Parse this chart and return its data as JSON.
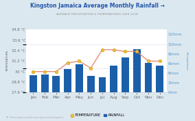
{
  "title": "Kingston Jamaica Average Monthly Rainfall →",
  "subtitle": "AVERAGE PRECIPITATION & TEMPERATURES 1949-2018",
  "months": [
    "Jan",
    "Feb",
    "Mar",
    "Apr",
    "May",
    "Jun",
    "Jul",
    "Aug",
    "Sep",
    "Oct",
    "Nov",
    "Dec"
  ],
  "temperature": [
    30.0,
    30.0,
    30.0,
    31.0,
    31.2,
    30.4,
    32.5,
    32.5,
    32.3,
    32.3,
    31.2,
    31.2
  ],
  "rainfall": [
    36,
    38,
    35,
    48,
    58,
    35,
    32,
    55,
    72,
    90,
    62,
    55
  ],
  "temp_ylim": [
    27.6,
    34.8
  ],
  "rain_ylim": [
    0,
    130
  ],
  "temp_yticks": [
    27.6,
    28.8,
    30.0,
    31.2,
    32.4,
    33.6,
    34.8
  ],
  "temp_ytick_labels": [
    "27.6 °C",
    "28.8 °C",
    "30 °C",
    "31.2 °C",
    "32.4 °C",
    "33.6 °C",
    "34.8 °C"
  ],
  "rain_yticks": [
    0,
    20,
    40,
    60,
    80,
    100,
    120
  ],
  "rain_ytick_labels": [
    "0mm",
    "20mm",
    "40mm",
    "60mm",
    "80mm",
    "100mm",
    "120mm"
  ],
  "bar_color": "#1b5faa",
  "line_color": "#e8826a",
  "marker_facecolor": "#f0c040",
  "marker_edgecolor": "#c8a000",
  "bg_color": "#dce8f0",
  "plot_bg": "#ffffff",
  "title_color": "#2255aa",
  "subtitle_color": "#999999",
  "left_tick_color": "#666666",
  "right_tick_color": "#5599cc",
  "grid_color": "#e0e8f0",
  "temp_label": "TEMPERATURE",
  "rain_label": "RAINFALL",
  "footer": "☘ hikersday.com/climate/jamaica/kingston",
  "ylabel_left": "TEMPERATURE",
  "ylabel_right": "Precipitation"
}
